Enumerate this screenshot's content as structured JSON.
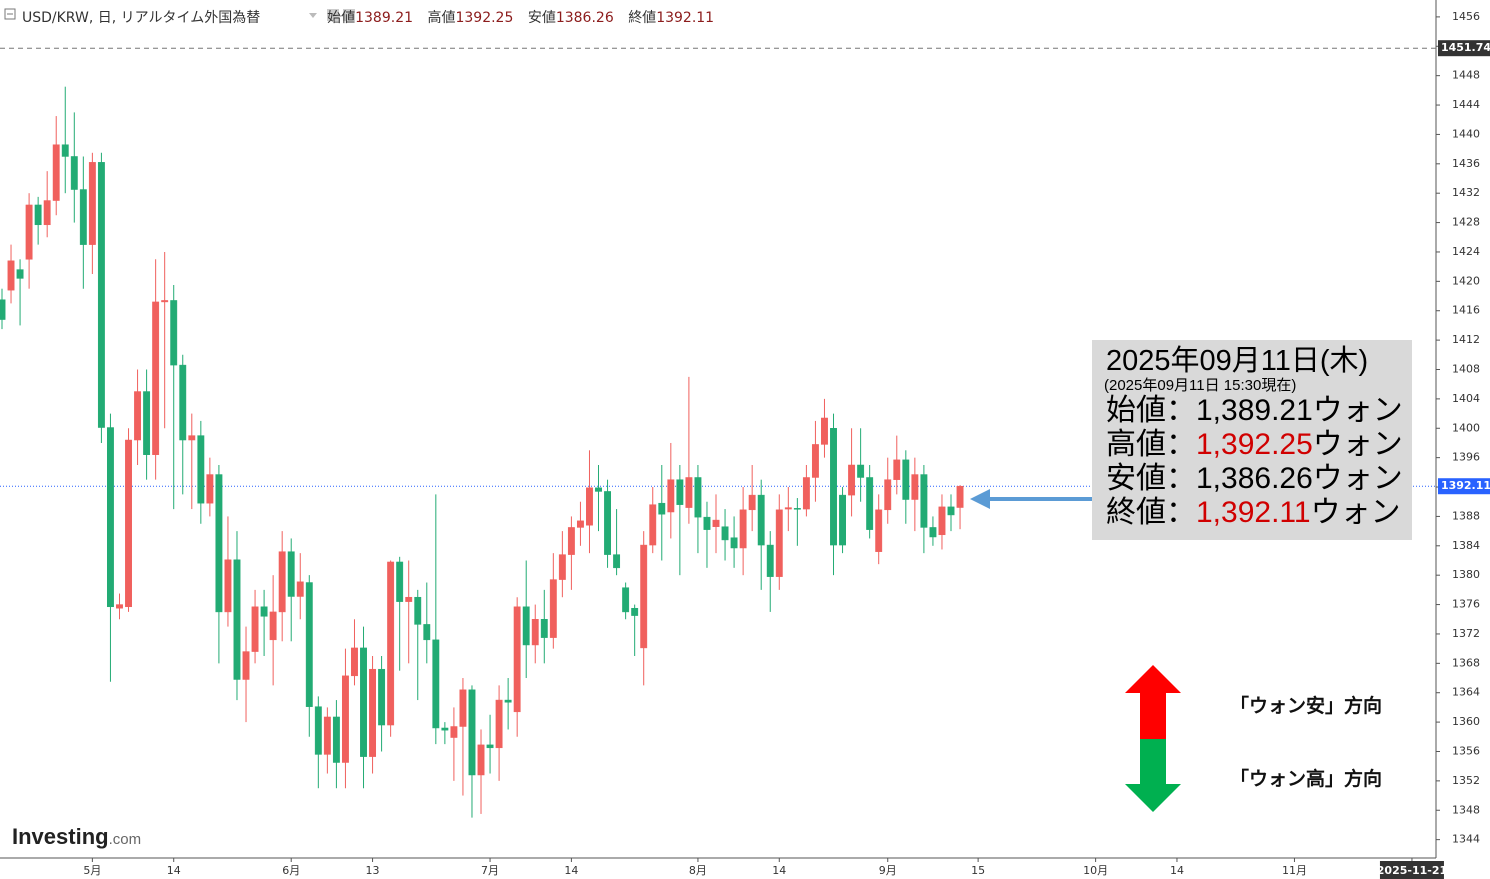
{
  "chart_data": {
    "type": "candlestick",
    "title": "USD/KRW, 日, リアルタイム外国為替",
    "header_labels": [
      "始値",
      "高値",
      "安値",
      "終値"
    ],
    "open": [
      1417.5,
      1418.8,
      1421.6,
      1423,
      1430.4,
      1427.7,
      1431,
      1438.6,
      1437,
      1432.5,
      1425,
      1436.2,
      1400.1,
      1375.5,
      1375.7,
      1398.4,
      1405,
      1396.4,
      1417.2,
      1417.4,
      1408.6,
      1398.4,
      1399,
      1389.8,
      1393.7,
      1375,
      1382.1,
      1365.8,
      1369.6,
      1375.7,
      1371.2,
      1375,
      1383.2,
      1377.1,
      1379,
      1362.1,
      1355.6,
      1360.7,
      1354.5,
      1366.3,
      1370.1,
      1355.3,
      1367.2,
      1359.6,
      1381.8,
      1376.4,
      1377,
      1373.3,
      1371.2,
      1359.2,
      1357.9,
      1359.4,
      1364.4,
      1352.8,
      1356.9,
      1356.5,
      1363,
      1361.4,
      1375.7,
      1370.5,
      1374,
      1371.5,
      1379.4,
      1382.8,
      1386.5,
      1386.8,
      1391.9,
      1391.4,
      1382.8,
      1378.3,
      1375.5,
      1370.1,
      1384.1,
      1389.8,
      1388.6,
      1393,
      1389.2,
      1393.3,
      1387.9,
      1386.6,
      1386.6,
      1385.1,
      1383.7,
      1388.9,
      1390.9,
      1384.1,
      1379.8,
      1389,
      1389.1,
      1389,
      1393.3,
      1397.8,
      1400,
      1390.9,
      1390.9,
      1395,
      1393.3,
      1383.2,
      1388.9,
      1393,
      1395.7,
      1390.3,
      1393.7,
      1386.5,
      1385.5,
      1389.3,
      1389.21
    ],
    "high": [
      1419,
      1425,
      1423,
      1432,
      1431.5,
      1435,
      1442.5,
      1446.5,
      1443,
      1437,
      1437.5,
      1437.5,
      1402,
      1377.5,
      1400,
      1408,
      1408,
      1423,
      1424,
      1419.5,
      1410,
      1402,
      1401,
      1396,
      1395,
      1388,
      1386,
      1373,
      1378,
      1378,
      1380,
      1386,
      1385,
      1383,
      1380,
      1363.5,
      1362,
      1363,
      1370,
      1374,
      1373,
      1369,
      1369,
      1382,
      1382.5,
      1382,
      1378,
      1379,
      1391,
      1360,
      1362,
      1366,
      1365,
      1359,
      1361,
      1365,
      1366,
      1377,
      1382,
      1376,
      1378,
      1383,
      1386,
      1388,
      1390,
      1397,
      1395,
      1393,
      1389,
      1379,
      1376,
      1386,
      1392,
      1395,
      1398,
      1395,
      1407,
      1395,
      1390,
      1391,
      1389,
      1388,
      1392,
      1395,
      1393,
      1386,
      1391,
      1392,
      1390.5,
      1395,
      1401,
      1404,
      1402,
      1392,
      1400,
      1400,
      1395,
      1391,
      1396,
      1399,
      1397,
      1396,
      1395,
      1388,
      1391,
      1391,
      1392.25
    ],
    "low": [
      1413.5,
      1417,
      1414,
      1419,
      1425,
      1426,
      1429,
      1432,
      1428,
      1419,
      1421,
      1398,
      1365.5,
      1374,
      1375,
      1395,
      1393,
      1393,
      1400,
      1389,
      1391,
      1389,
      1387,
      1388,
      1368,
      1373,
      1363,
      1360,
      1368,
      1369,
      1365,
      1371,
      1371,
      1374,
      1358,
      1351,
      1353,
      1351,
      1351,
      1365,
      1351,
      1353,
      1356,
      1358,
      1367,
      1368,
      1363,
      1368,
      1357,
      1357,
      1352,
      1350,
      1347,
      1347.5,
      1353,
      1352,
      1359,
      1358,
      1366,
      1368,
      1368,
      1370,
      1377,
      1378,
      1384,
      1383,
      1386,
      1381,
      1380,
      1374,
      1369,
      1365,
      1383,
      1382,
      1385,
      1380,
      1387,
      1383,
      1381,
      1383,
      1382,
      1381,
      1380,
      1386,
      1378,
      1375,
      1378,
      1386,
      1384,
      1388,
      1390,
      1396,
      1380,
      1383,
      1388,
      1390,
      1385,
      1381.5,
      1387,
      1391,
      1387,
      1386,
      1383,
      1384,
      1383.5,
      1386,
      1386.26
    ],
    "close": [
      1414.8,
      1422.8,
      1420.4,
      1430.4,
      1427.7,
      1431,
      1438.6,
      1437,
      1432.5,
      1425,
      1436.2,
      1400.1,
      1375.7,
      1376,
      1398.4,
      1405,
      1396.4,
      1417.2,
      1417.4,
      1408.6,
      1398.4,
      1399,
      1389.8,
      1393.7,
      1375,
      1382.1,
      1365.8,
      1369.6,
      1375.7,
      1374.4,
      1375,
      1383.2,
      1377.1,
      1379.1,
      1362.1,
      1355.6,
      1360.7,
      1354.5,
      1366.3,
      1370.1,
      1355.3,
      1367.2,
      1359.6,
      1381.8,
      1376.4,
      1377,
      1373.3,
      1371.2,
      1359.2,
      1358.9,
      1359.4,
      1364.4,
      1352.8,
      1356.9,
      1356.5,
      1363,
      1362.7,
      1375.7,
      1370.5,
      1374,
      1371.5,
      1379.4,
      1382.8,
      1386.5,
      1387.4,
      1391.9,
      1391.4,
      1382.8,
      1381,
      1375,
      1374.5,
      1384.1,
      1389.6,
      1388.3,
      1393,
      1389.6,
      1393.3,
      1387.9,
      1386.2,
      1387.5,
      1384.8,
      1383.7,
      1388.9,
      1390.9,
      1384.1,
      1379.8,
      1388.9,
      1389.2,
      1389,
      1393.3,
      1397.8,
      1401.4,
      1384.1,
      1384.1,
      1395,
      1393.3,
      1386.2,
      1388.9,
      1393,
      1395.7,
      1390.3,
      1393.7,
      1386.5,
      1385.2,
      1389.3,
      1388.2,
      1392.11
    ],
    "up_color": "#f0605d",
    "down_color": "#22ab74",
    "ylim": [
      1341.5,
      1458.3
    ],
    "yticks": [
      1344,
      1348,
      1352,
      1356,
      1360,
      1364,
      1368,
      1372,
      1376,
      1380,
      1384,
      1388,
      1392,
      1396,
      1400,
      1404,
      1408,
      1412,
      1416,
      1420,
      1424,
      1428,
      1432,
      1436,
      1440,
      1444,
      1448,
      1452,
      1456
    ],
    "xlim": [
      -0.22,
      158.66
    ],
    "xticks": [
      {
        "value": 10,
        "label": "5月"
      },
      {
        "value": 19,
        "label": "14"
      },
      {
        "value": 32,
        "label": "6月"
      },
      {
        "value": 41,
        "label": "13"
      },
      {
        "value": 54,
        "label": "7月"
      },
      {
        "value": 63,
        "label": "14"
      },
      {
        "value": 77,
        "label": "8月"
      },
      {
        "value": 86,
        "label": "14"
      },
      {
        "value": 98,
        "label": "9月"
      },
      {
        "value": 108,
        "label": "15"
      },
      {
        "value": 121,
        "label": "10月"
      },
      {
        "value": 130,
        "label": "14"
      },
      {
        "value": 143,
        "label": "11月"
      },
      {
        "value": 156,
        "label": "2025-11-21"
      }
    ],
    "ref_line": 1451.74,
    "grid": false,
    "watermark": [
      "Investing",
      ".com"
    ],
    "annotation": {
      "date": "2025年09月11日(木)",
      "asof": "(2025年09月11日 15:30現在)",
      "highlight_color": "#d00000",
      "rows": [
        {
          "label": "始値：",
          "value": "1,389.21",
          "unit": "ウォン",
          "highlight": false
        },
        {
          "label": "高値：",
          "value": "1,392.25",
          "unit": "ウォン",
          "highlight": true
        },
        {
          "label": "安値：",
          "value": "1,386.26",
          "unit": "ウォン",
          "highlight": false
        },
        {
          "label": "終値：",
          "value": "1,392.11",
          "unit": "ウォン",
          "highlight": true
        }
      ]
    },
    "directions": [
      "「ウォン安」方向",
      "「ウォン高」方向"
    ]
  }
}
